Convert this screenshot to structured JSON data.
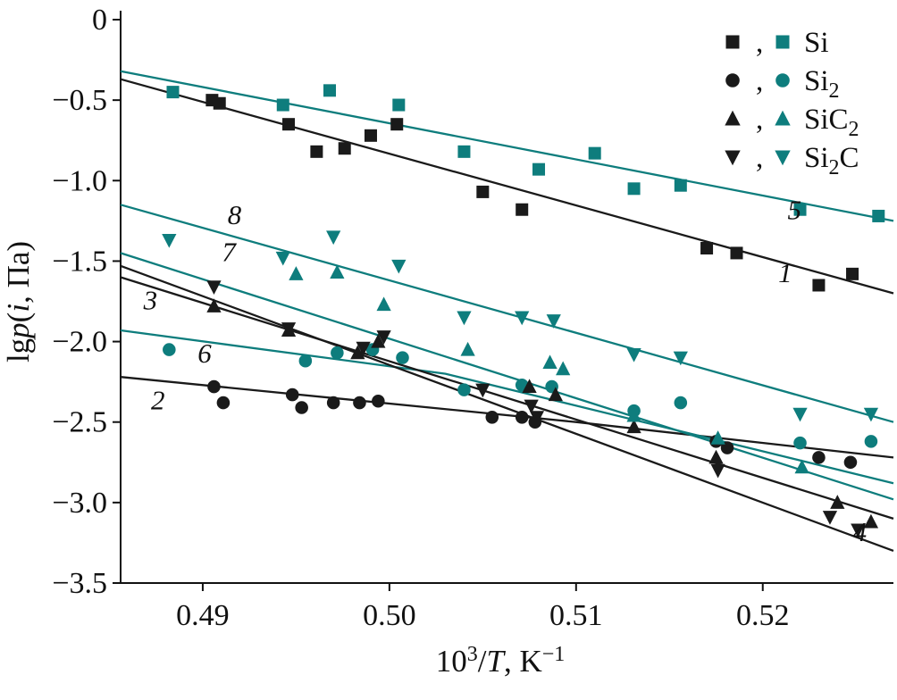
{
  "figure": {
    "background": "#ffffff",
    "colors": {
      "black": "#1a1a1a",
      "teal": "#0e7d7d"
    }
  },
  "chart_data": {
    "type": "scatter",
    "title": "",
    "xlabel_parts": [
      {
        "t": "10"
      },
      {
        "t": "3",
        "sup": true
      },
      {
        "t": "/"
      },
      {
        "t": "T",
        "italic": true
      },
      {
        "t": ", K"
      },
      {
        "t": "−1",
        "sup": true
      }
    ],
    "ylabel_parts": [
      {
        "t": "lg"
      },
      {
        "t": "p",
        "italic": true
      },
      {
        "t": "("
      },
      {
        "t": "i",
        "italic": true
      },
      {
        "t": ", Па)"
      }
    ],
    "xlim": [
      0.4856,
      0.527
    ],
    "ylim": [
      -3.5,
      0
    ],
    "grid": false,
    "legend_position": "top-right",
    "xticks": [
      0.49,
      0.5,
      0.51,
      0.52
    ],
    "xtick_labels": [
      "0.49",
      "0.50",
      "0.51",
      "0.52"
    ],
    "yticks": [
      0,
      -0.5,
      -1.0,
      -1.5,
      -2.0,
      -2.5,
      -3.0,
      -3.5
    ],
    "ytick_labels": [
      "0",
      "−0.5",
      "−1.0",
      "−1.5",
      "−2.0",
      "−2.5",
      "−3.0",
      "−3.5"
    ],
    "legend": {
      "separator": ",",
      "rows": [
        {
          "marker": "square",
          "label_parts": [
            {
              "t": "Si"
            }
          ]
        },
        {
          "marker": "circle",
          "label_parts": [
            {
              "t": "Si"
            },
            {
              "t": "2",
              "sub": true
            }
          ]
        },
        {
          "marker": "triangle-up",
          "label_parts": [
            {
              "t": "SiC"
            },
            {
              "t": "2",
              "sub": true
            }
          ]
        },
        {
          "marker": "triangle-down",
          "label_parts": [
            {
              "t": "Si"
            },
            {
              "t": "2",
              "sub": true
            },
            {
              "t": "C"
            }
          ]
        }
      ]
    },
    "series": [
      {
        "num": "1",
        "species": "Si",
        "palette": "black",
        "marker": "square",
        "points": [
          [
            0.4905,
            -0.5
          ],
          [
            0.4909,
            -0.52
          ],
          [
            0.4946,
            -0.65
          ],
          [
            0.4961,
            -0.82
          ],
          [
            0.4976,
            -0.8
          ],
          [
            0.499,
            -0.72
          ],
          [
            0.5004,
            -0.65
          ],
          [
            0.505,
            -1.07
          ],
          [
            0.5071,
            -1.18
          ],
          [
            0.517,
            -1.42
          ],
          [
            0.5186,
            -1.45
          ],
          [
            0.523,
            -1.65
          ],
          [
            0.5248,
            -1.58
          ]
        ],
        "fit": [
          [
            0.4856,
            -0.37
          ],
          [
            0.527,
            -1.7
          ]
        ],
        "label_pos": [
          0.5212,
          -1.63
        ]
      },
      {
        "num": "5",
        "species": "Si",
        "palette": "teal",
        "marker": "square",
        "points": [
          [
            0.4884,
            -0.45
          ],
          [
            0.4943,
            -0.53
          ],
          [
            0.4968,
            -0.44
          ],
          [
            0.5005,
            -0.53
          ],
          [
            0.504,
            -0.82
          ],
          [
            0.508,
            -0.93
          ],
          [
            0.511,
            -0.83
          ],
          [
            0.5131,
            -1.05
          ],
          [
            0.5156,
            -1.03
          ],
          [
            0.522,
            -1.18
          ],
          [
            0.5262,
            -1.22
          ]
        ],
        "fit": [
          [
            0.4856,
            -0.32
          ],
          [
            0.527,
            -1.25
          ]
        ],
        "label_pos": [
          0.5217,
          -1.24
        ]
      },
      {
        "num": "2",
        "species": "Si2",
        "palette": "black",
        "marker": "circle",
        "points": [
          [
            0.4906,
            -2.28
          ],
          [
            0.4911,
            -2.38
          ],
          [
            0.4948,
            -2.33
          ],
          [
            0.4953,
            -2.41
          ],
          [
            0.497,
            -2.38
          ],
          [
            0.4984,
            -2.38
          ],
          [
            0.4994,
            -2.37
          ],
          [
            0.5055,
            -2.47
          ],
          [
            0.5071,
            -2.47
          ],
          [
            0.5078,
            -2.5
          ],
          [
            0.5175,
            -2.62
          ],
          [
            0.5181,
            -2.66
          ],
          [
            0.523,
            -2.72
          ],
          [
            0.5247,
            -2.75
          ]
        ],
        "fit": [
          [
            0.4856,
            -2.22
          ],
          [
            0.51,
            -2.5
          ],
          [
            0.527,
            -2.72
          ]
        ],
        "label_pos": [
          0.4876,
          -2.42
        ]
      },
      {
        "num": "6",
        "species": "Si2",
        "palette": "teal",
        "marker": "circle",
        "points": [
          [
            0.4882,
            -2.05
          ],
          [
            0.4955,
            -2.12
          ],
          [
            0.4972,
            -2.07
          ],
          [
            0.4991,
            -2.05
          ],
          [
            0.5007,
            -2.1
          ],
          [
            0.504,
            -2.3
          ],
          [
            0.5071,
            -2.27
          ],
          [
            0.5087,
            -2.28
          ],
          [
            0.5131,
            -2.43
          ],
          [
            0.5156,
            -2.38
          ],
          [
            0.522,
            -2.63
          ],
          [
            0.5258,
            -2.62
          ]
        ],
        "fit": [
          [
            0.4856,
            -1.93
          ],
          [
            0.503,
            -2.2
          ],
          [
            0.527,
            -2.88
          ]
        ],
        "label_pos": [
          0.4901,
          -2.13
        ]
      },
      {
        "num": "3",
        "species": "SiC2",
        "palette": "black",
        "marker": "triangle-up",
        "points": [
          [
            0.4906,
            -1.78
          ],
          [
            0.4946,
            -1.93
          ],
          [
            0.4983,
            -2.07
          ],
          [
            0.4994,
            -2.0
          ],
          [
            0.5075,
            -2.28
          ],
          [
            0.5089,
            -2.33
          ],
          [
            0.5131,
            -2.53
          ],
          [
            0.5175,
            -2.72
          ],
          [
            0.524,
            -3.0
          ],
          [
            0.5258,
            -3.12
          ]
        ],
        "fit": [
          [
            0.4856,
            -1.6
          ],
          [
            0.527,
            -3.1
          ]
        ],
        "label_pos": [
          0.4872,
          -1.8
        ]
      },
      {
        "num": "7",
        "species": "SiC2",
        "palette": "teal",
        "marker": "triangle-up",
        "points": [
          [
            0.495,
            -1.58
          ],
          [
            0.4972,
            -1.57
          ],
          [
            0.4997,
            -1.77
          ],
          [
            0.5042,
            -2.05
          ],
          [
            0.5086,
            -2.13
          ],
          [
            0.5093,
            -2.17
          ],
          [
            0.5131,
            -2.46
          ],
          [
            0.5176,
            -2.6
          ],
          [
            0.5221,
            -2.78
          ]
        ],
        "fit": [
          [
            0.4856,
            -1.45
          ],
          [
            0.527,
            -2.98
          ]
        ],
        "label_pos": [
          0.4914,
          -1.5
        ]
      },
      {
        "num": "4",
        "species": "Si2C",
        "palette": "black",
        "marker": "triangle-down",
        "points": [
          [
            0.4906,
            -1.66
          ],
          [
            0.4946,
            -1.92
          ],
          [
            0.4986,
            -2.04
          ],
          [
            0.4997,
            -1.97
          ],
          [
            0.505,
            -2.3
          ],
          [
            0.5076,
            -2.4
          ],
          [
            0.5079,
            -2.47
          ],
          [
            0.5176,
            -2.8
          ],
          [
            0.5236,
            -3.09
          ],
          [
            0.5251,
            -3.17
          ]
        ],
        "fit": [
          [
            0.4856,
            -1.53
          ],
          [
            0.527,
            -3.3
          ]
        ],
        "label_pos": [
          0.5252,
          -3.24
        ]
      },
      {
        "num": "8",
        "species": "Si2C",
        "palette": "teal",
        "marker": "triangle-down",
        "points": [
          [
            0.4882,
            -1.37
          ],
          [
            0.4943,
            -1.48
          ],
          [
            0.497,
            -1.35
          ],
          [
            0.5005,
            -1.53
          ],
          [
            0.504,
            -1.85
          ],
          [
            0.5071,
            -1.85
          ],
          [
            0.5088,
            -1.87
          ],
          [
            0.5131,
            -2.08
          ],
          [
            0.5156,
            -2.1
          ],
          [
            0.522,
            -2.45
          ],
          [
            0.5258,
            -2.45
          ]
        ],
        "fit": [
          [
            0.4856,
            -1.15
          ],
          [
            0.527,
            -2.5
          ]
        ],
        "label_pos": [
          0.4917,
          -1.27
        ]
      }
    ]
  }
}
